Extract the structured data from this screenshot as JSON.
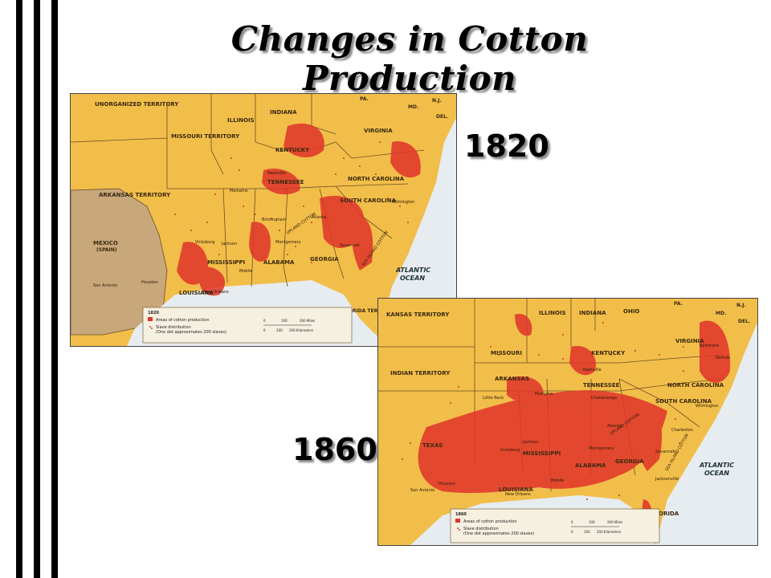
{
  "title": "Changes in Cotton Production",
  "colors": {
    "land": "#f2be4a",
    "cotton": "#e0342a",
    "cotton_light": "#ef7a52",
    "water": "#e6ecf0",
    "mexico": "#c8a77b",
    "border": "#6b4e22"
  },
  "map1820": {
    "year_label": "1820",
    "states": [
      "UNORGANIZED TERRITORY",
      "MISSOURI TERRITORY",
      "ILLINOIS",
      "INDIANA",
      "PA.",
      "MD.",
      "N.J.",
      "DEL.",
      "VIRGINIA",
      "KENTUCKY",
      "NORTH CAROLINA",
      "TENNESSEE",
      "SOUTH CAROLINA",
      "ARKANSAS TERRITORY",
      "MEXICO",
      "(SPAIN)",
      "MISSISSIPPI",
      "ALABAMA",
      "GEORGIA",
      "LOUISIANA",
      "FLORIDA TERRITORY"
    ],
    "cities": [
      "Nashville",
      "Memphis",
      "Birmingham",
      "Atlanta",
      "Wilmington",
      "Savannah",
      "Vicksburg",
      "Jackson",
      "Montgomery",
      "Mobile",
      "New Orleans",
      "San Antonio",
      "Houston"
    ],
    "belts": [
      "UPLAND COTTON",
      "SEA ISLAND COTTON"
    ],
    "ocean": [
      "ATLANTIC",
      "OCEAN"
    ],
    "legend": {
      "year": "1820",
      "item1": "Areas of cotton production",
      "item2": "Slave distribution",
      "item2b": "(One dot approximates 200 slaves)",
      "scale_miles": [
        "0",
        "100",
        "200 Miles"
      ],
      "scale_km": [
        "0",
        "100",
        "200 Kilometers"
      ]
    }
  },
  "map1860": {
    "year_label": "1860",
    "states": [
      "KANSAS TERRITORY",
      "ILLINOIS",
      "INDIANA",
      "OHIO",
      "PA.",
      "N.J.",
      "MD.",
      "DEL.",
      "MISSOURI",
      "KENTUCKY",
      "VIRGINIA",
      "INDIAN TERRITORY",
      "ARKANSAS",
      "TENNESSEE",
      "NORTH CAROLINA",
      "SOUTH CAROLINA",
      "TEXAS",
      "MISSISSIPPI",
      "ALABAMA",
      "GEORGIA",
      "LOUISIANA",
      "FLORIDA"
    ],
    "cities": [
      "Baltimore",
      "Norfolk",
      "Nashville",
      "Little Rock",
      "Memphis",
      "Chattanooga",
      "Wilmington",
      "Charleston",
      "Atlanta",
      "Vicksburg",
      "Jackson",
      "Montgomery",
      "Savannah",
      "Mobile",
      "New Orleans",
      "Houston",
      "San Antonio",
      "Jacksonville"
    ],
    "belts": [
      "UPLAND COTTON",
      "SEA ISLAND COTTON"
    ],
    "ocean": [
      "ATLANTIC",
      "OCEAN"
    ],
    "legend": {
      "year": "1860",
      "item1": "Areas of cotton production",
      "item2": "Slave distribution",
      "item2b": "(One dot approximates 200 slaves)",
      "scale_miles": [
        "0",
        "100",
        "200 Miles"
      ],
      "scale_km": [
        "0",
        "100",
        "200 Kilometers"
      ]
    }
  }
}
